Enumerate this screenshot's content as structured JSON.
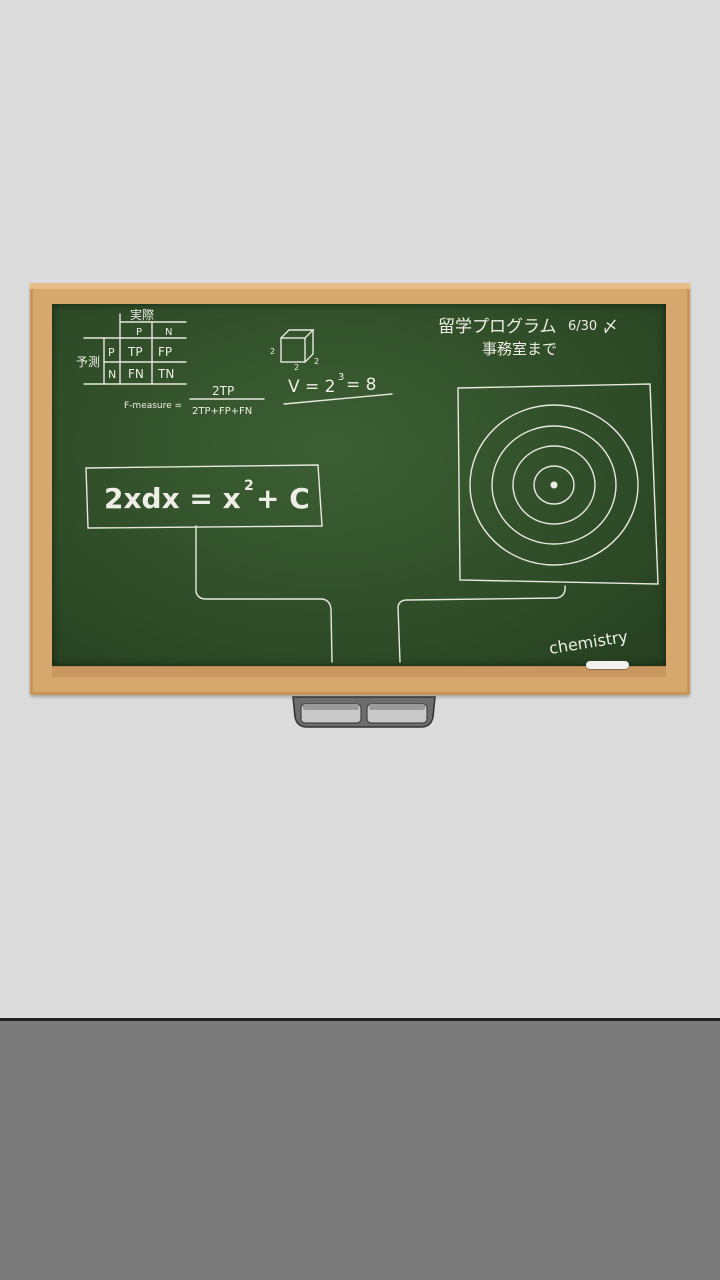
{
  "board": {
    "confusion": {
      "top_label": "実際",
      "side_label": "予測",
      "col_p": "P",
      "col_n": "N",
      "row_p": "P",
      "row_n": "N",
      "tp": "TP",
      "fp": "FP",
      "fn": "FN",
      "tn": "TN"
    },
    "fmeasure": {
      "label": "F-measure =",
      "numerator": "2TP",
      "denominator": "2TP+FP+FN"
    },
    "cube": {
      "edge_top": "2",
      "edge_left": "2",
      "edge_right": "2",
      "volume": "V = 2",
      "exponent": "3",
      "result": "= 8"
    },
    "notice": {
      "line1": "留学プログラム",
      "date": "6/30",
      "mark": "〆",
      "line2": "事務室まで"
    },
    "equation": {
      "lhs": "2xdx = x",
      "exp": "2",
      "rhs": "+ C"
    },
    "signature": "chemistry"
  },
  "colors": {
    "wall": "#dcdcdc",
    "floor": "#7b7b7b",
    "board": "#2f4d28",
    "frame": "#d6a86e",
    "chalk": "#eeeee6"
  }
}
